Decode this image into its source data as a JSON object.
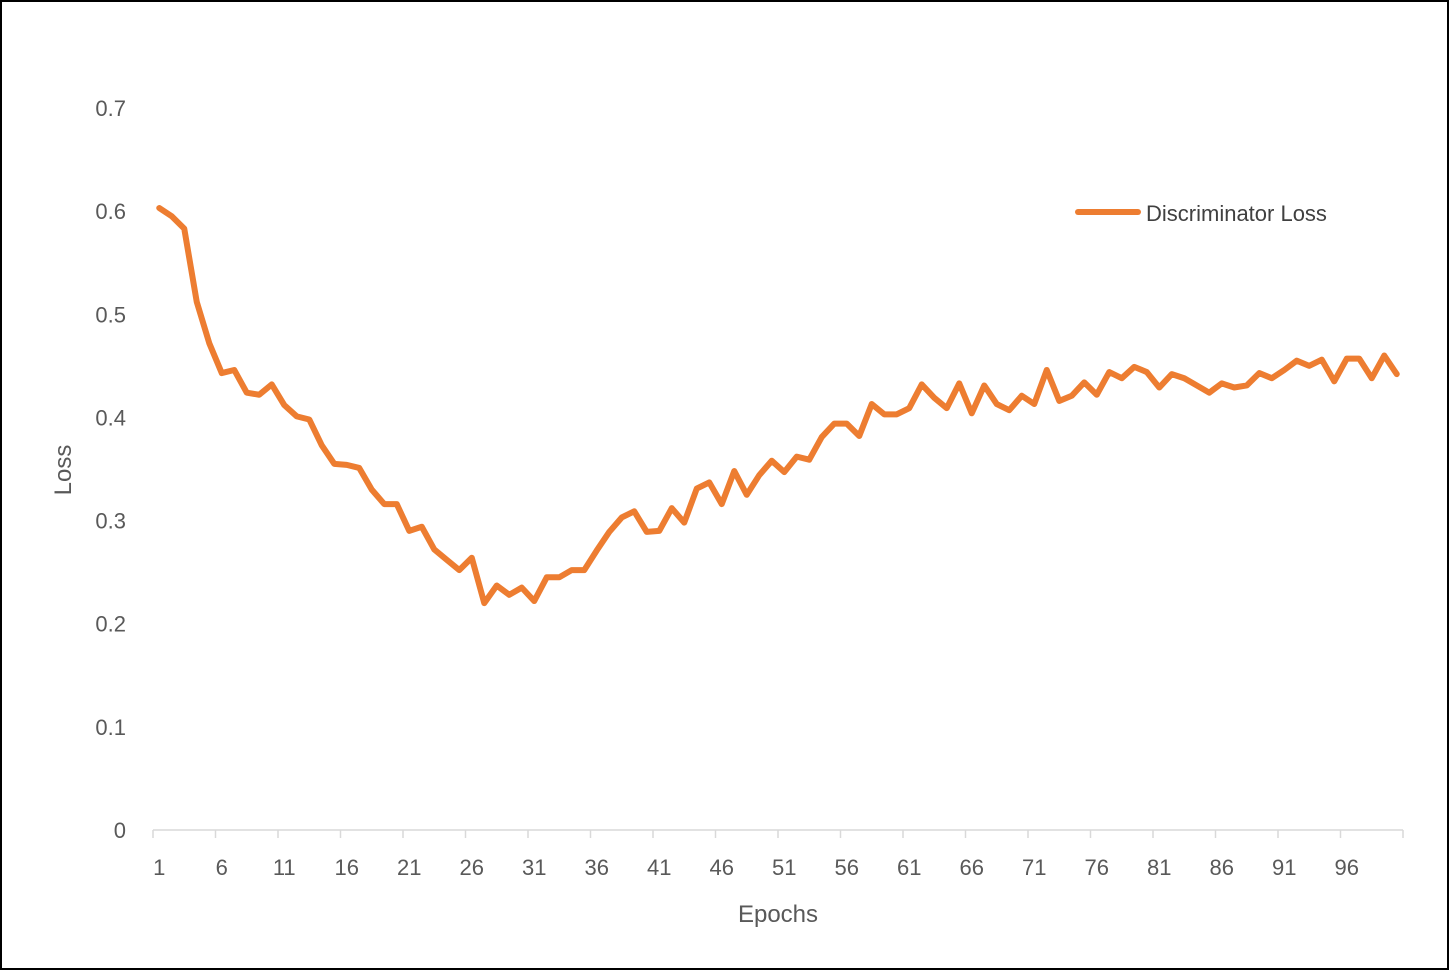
{
  "chart_data": {
    "type": "line",
    "title": "",
    "xlabel": "Epochs",
    "ylabel": "Loss",
    "ylim": [
      0,
      0.7
    ],
    "y_ticks": [
      "0",
      "0.1",
      "0.2",
      "0.3",
      "0.4",
      "0.5",
      "0.6",
      "0.7"
    ],
    "x_tick_labels": [
      "1",
      "6",
      "11",
      "16",
      "21",
      "26",
      "31",
      "36",
      "41",
      "46",
      "51",
      "56",
      "61",
      "66",
      "71",
      "76",
      "81",
      "86",
      "91",
      "96"
    ],
    "grid": false,
    "legend_position": "top-right",
    "colors": {
      "series": "#ED7D31",
      "axis": "#D9D9D9",
      "text": "#595959"
    },
    "x": [
      1,
      2,
      3,
      4,
      5,
      6,
      7,
      8,
      9,
      10,
      11,
      12,
      13,
      14,
      15,
      16,
      17,
      18,
      19,
      20,
      21,
      22,
      23,
      24,
      25,
      26,
      27,
      28,
      29,
      30,
      31,
      32,
      33,
      34,
      35,
      36,
      37,
      38,
      39,
      40,
      41,
      42,
      43,
      44,
      45,
      46,
      47,
      48,
      49,
      50,
      51,
      52,
      53,
      54,
      55,
      56,
      57,
      58,
      59,
      60,
      61,
      62,
      63,
      64,
      65,
      66,
      67,
      68,
      69,
      70,
      71,
      72,
      73,
      74,
      75,
      76,
      77,
      78,
      79,
      80,
      81,
      82,
      83,
      84,
      85,
      86,
      87,
      88,
      89,
      90,
      91,
      92,
      93,
      94,
      95,
      96,
      97,
      98,
      99,
      100
    ],
    "series": [
      {
        "name": "Discriminator Loss",
        "values": [
          0.603,
          0.595,
          0.583,
          0.512,
          0.472,
          0.443,
          0.446,
          0.424,
          0.422,
          0.432,
          0.412,
          0.401,
          0.398,
          0.373,
          0.355,
          0.354,
          0.351,
          0.33,
          0.316,
          0.316,
          0.29,
          0.294,
          0.272,
          0.262,
          0.252,
          0.264,
          0.22,
          0.237,
          0.228,
          0.235,
          0.222,
          0.245,
          0.245,
          0.252,
          0.252,
          0.271,
          0.289,
          0.303,
          0.309,
          0.289,
          0.29,
          0.312,
          0.298,
          0.331,
          0.337,
          0.316,
          0.348,
          0.325,
          0.344,
          0.358,
          0.347,
          0.362,
          0.359,
          0.381,
          0.394,
          0.394,
          0.382,
          0.413,
          0.403,
          0.403,
          0.409,
          0.432,
          0.419,
          0.409,
          0.433,
          0.404,
          0.431,
          0.413,
          0.407,
          0.421,
          0.413,
          0.446,
          0.416,
          0.421,
          0.434,
          0.422,
          0.444,
          0.438,
          0.449,
          0.444,
          0.429,
          0.442,
          0.438,
          0.431,
          0.424,
          0.433,
          0.429,
          0.431,
          0.443,
          0.438,
          0.446,
          0.455,
          0.45,
          0.456,
          0.435,
          0.457,
          0.457,
          0.438,
          0.46,
          0.442
        ]
      }
    ]
  }
}
